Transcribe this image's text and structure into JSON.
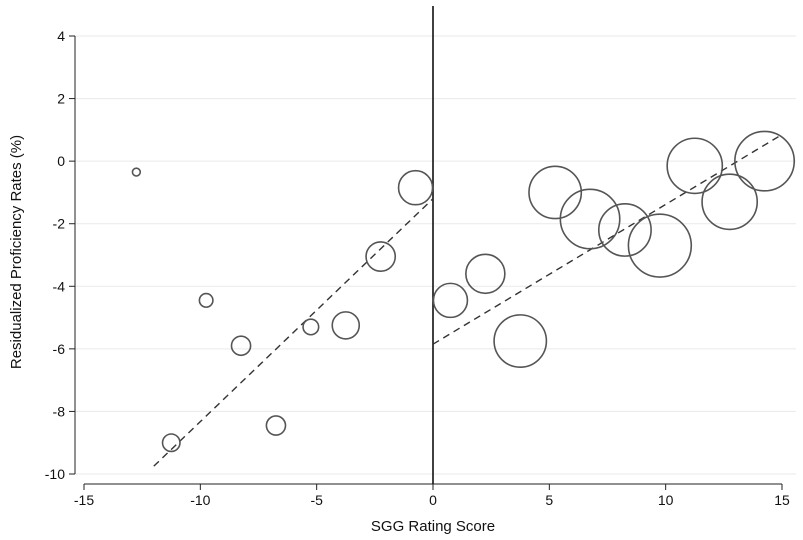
{
  "chart_data": {
    "type": "scatter",
    "title": "",
    "xlabel": "SGG Rating Score",
    "ylabel": "Residualized Proficiency Rates (%)",
    "xlim": [
      -15,
      15
    ],
    "ylim": [
      -10,
      4
    ],
    "xticks": [
      -15,
      -10,
      -5,
      0,
      5,
      10,
      15
    ],
    "yticks": [
      4,
      2,
      0,
      -2,
      -4,
      -6,
      -8,
      -10
    ],
    "xtick_labels": [
      "-15",
      "-10",
      "-5",
      "0",
      "5",
      "10",
      "15"
    ],
    "ytick_labels": [
      "4",
      "2",
      "0",
      "-2",
      "-4",
      "-6",
      "-8",
      "-10"
    ],
    "grid": "horizontal",
    "cutoff_x": 0,
    "points": [
      {
        "x": -12.75,
        "y": -0.35,
        "weight": 1
      },
      {
        "x": -11.25,
        "y": -9.0,
        "weight": 5
      },
      {
        "x": -9.75,
        "y": -4.45,
        "weight": 3
      },
      {
        "x": -8.25,
        "y": -5.9,
        "weight": 6
      },
      {
        "x": -6.75,
        "y": -8.45,
        "weight": 6
      },
      {
        "x": -5.25,
        "y": -5.3,
        "weight": 4
      },
      {
        "x": -3.75,
        "y": -5.25,
        "weight": 12
      },
      {
        "x": -2.25,
        "y": -3.05,
        "weight": 14
      },
      {
        "x": -0.75,
        "y": -0.85,
        "weight": 19
      },
      {
        "x": 0.75,
        "y": -4.45,
        "weight": 19
      },
      {
        "x": 2.25,
        "y": -3.6,
        "weight": 25
      },
      {
        "x": 3.75,
        "y": -5.75,
        "weight": 45
      },
      {
        "x": 5.25,
        "y": -1.0,
        "weight": 45
      },
      {
        "x": 6.75,
        "y": -1.85,
        "weight": 58
      },
      {
        "x": 8.25,
        "y": -2.2,
        "weight": 45
      },
      {
        "x": 9.75,
        "y": -2.7,
        "weight": 65
      },
      {
        "x": 11.25,
        "y": -0.15,
        "weight": 50
      },
      {
        "x": 12.75,
        "y": -1.3,
        "weight": 50
      },
      {
        "x": 14.25,
        "y": 0.0,
        "weight": 58
      }
    ],
    "fit_lines": [
      {
        "x": [
          -12.0,
          0.0
        ],
        "y": [
          -9.75,
          -1.2
        ]
      },
      {
        "x": [
          0.0,
          15.0
        ],
        "y": [
          -5.85,
          0.85
        ]
      }
    ],
    "colors": {
      "marker": "#555555",
      "fit_line": "#333333",
      "cutoff": "#111111",
      "grid": "#eaeaea",
      "axis": "#222222"
    }
  }
}
